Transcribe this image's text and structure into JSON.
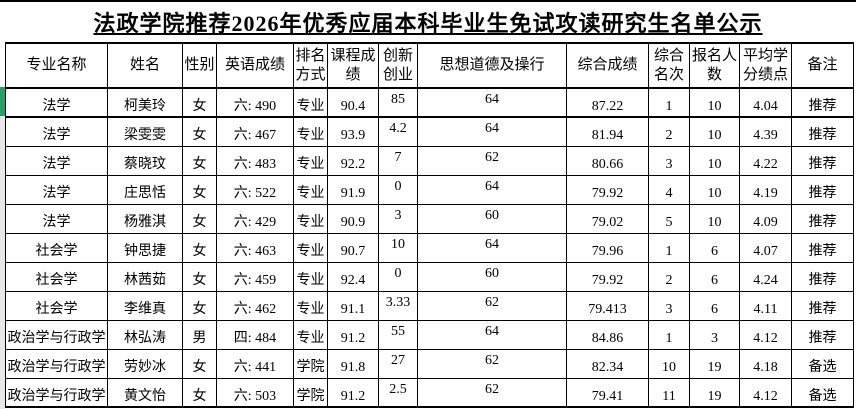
{
  "title": "法政学院推荐2026年优秀应届本科毕业生免试攻读研究生名单公示",
  "table": {
    "headers": [
      "专业名称",
      "姓名",
      "性别",
      "英语成绩",
      "排名方式",
      "课程成绩",
      "创新创业",
      "思想道德及操行",
      "综合成绩",
      "综合名次",
      "报名人数",
      "平均学分绩点",
      "备注"
    ],
    "rows": [
      [
        "法学",
        "柯美玲",
        "女",
        "六: 490",
        "专业",
        "90.4",
        "85",
        "64",
        "87.22",
        "1",
        "10",
        "4.04",
        "推荐"
      ],
      [
        "法学",
        "梁雯雯",
        "女",
        "六: 467",
        "专业",
        "93.9",
        "4.2",
        "64",
        "81.94",
        "2",
        "10",
        "4.39",
        "推荐"
      ],
      [
        "法学",
        "蔡晓玟",
        "女",
        "六: 483",
        "专业",
        "92.2",
        "7",
        "62",
        "80.66",
        "3",
        "10",
        "4.22",
        "推荐"
      ],
      [
        "法学",
        "庄思恬",
        "女",
        "六: 522",
        "专业",
        "91.9",
        "0",
        "64",
        "79.92",
        "4",
        "10",
        "4.19",
        "推荐"
      ],
      [
        "法学",
        "杨雅淇",
        "女",
        "六: 429",
        "专业",
        "90.9",
        "3",
        "60",
        "79.02",
        "5",
        "10",
        "4.09",
        "推荐"
      ],
      [
        "社会学",
        "钟思捷",
        "女",
        "六: 463",
        "专业",
        "90.7",
        "10",
        "64",
        "79.96",
        "1",
        "6",
        "4.07",
        "推荐"
      ],
      [
        "社会学",
        "林茜茹",
        "女",
        "六: 459",
        "专业",
        "92.4",
        "0",
        "60",
        "79.92",
        "2",
        "6",
        "4.24",
        "推荐"
      ],
      [
        "社会学",
        "李维真",
        "女",
        "六: 462",
        "专业",
        "91.1",
        "3.33",
        "62",
        "79.413",
        "3",
        "6",
        "4.11",
        "推荐"
      ],
      [
        "政治学与行政学",
        "林弘涛",
        "男",
        "四: 484",
        "专业",
        "91.2",
        "55",
        "64",
        "84.86",
        "1",
        "3",
        "4.12",
        "推荐"
      ],
      [
        "政治学与行政学",
        "劳妙冰",
        "女",
        "六: 441",
        "学院",
        "91.8",
        "27",
        "62",
        "82.34",
        "10",
        "19",
        "4.18",
        "备选"
      ],
      [
        "政治学与行政学",
        "黄文怡",
        "女",
        "六: 503",
        "学院",
        "91.2",
        "2.5",
        "62",
        "79.41",
        "11",
        "19",
        "4.12",
        "备选"
      ]
    ]
  },
  "colors": {
    "selection_green": "#21A366",
    "grid_line": "#000000",
    "row_header_gray": "#E8E8E8"
  }
}
